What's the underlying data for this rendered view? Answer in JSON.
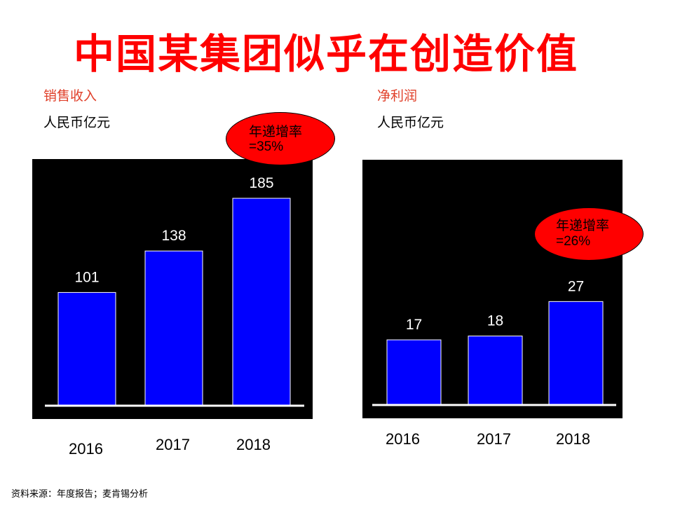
{
  "title": "中国某集团似乎在创造价值",
  "source": "资料来源：年度报告；麦肯锡分析",
  "colors": {
    "title": "#ff0000",
    "subtitle": "#e0402a",
    "bar": "#0000ff",
    "bubble": "#ff0000",
    "panel": "#000000"
  },
  "chart_data": [
    {
      "type": "bar",
      "title": "销售收入",
      "ylabel": "人民币亿元",
      "categories": [
        "2016",
        "2017",
        "2018"
      ],
      "values": [
        101,
        138,
        185
      ],
      "ylim": [
        0,
        220
      ],
      "grid": false,
      "annotation": {
        "line1": "年递增率",
        "line2": "=35%"
      }
    },
    {
      "type": "bar",
      "title": "净利润",
      "ylabel": "人民币亿元",
      "categories": [
        "2016",
        "2017",
        "2018"
      ],
      "values": [
        17,
        18,
        27
      ],
      "ylim": [
        0,
        64
      ],
      "grid": false,
      "annotation": {
        "line1": "年递增率",
        "line2": "=26%"
      }
    }
  ]
}
